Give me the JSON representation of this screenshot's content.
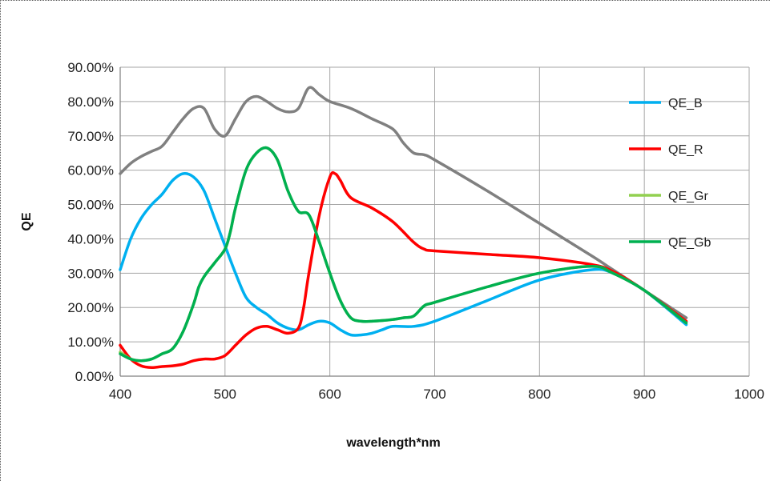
{
  "chart_data": {
    "type": "line",
    "xlabel": "wavelength*nm",
    "ylabel": "QE",
    "xlim": [
      400,
      1000
    ],
    "ylim": [
      0,
      0.9
    ],
    "x_ticks": [
      "400",
      "500",
      "600",
      "700",
      "800",
      "900",
      "1000"
    ],
    "y_ticks": [
      "0.00%",
      "10.00%",
      "20.00%",
      "30.00%",
      "40.00%",
      "50.00%",
      "60.00%",
      "70.00%",
      "80.00%",
      "90.00%"
    ],
    "grid": true,
    "legend_position": "top-right",
    "series": [
      {
        "name": "QE_B",
        "color": "#00b0f0",
        "x": [
          400,
          410,
          420,
          430,
          440,
          450,
          460,
          470,
          480,
          490,
          500,
          510,
          520,
          530,
          540,
          550,
          560,
          570,
          580,
          590,
          600,
          610,
          620,
          630,
          640,
          650,
          660,
          680,
          700,
          750,
          800,
          850,
          870,
          900,
          940
        ],
        "y": [
          0.31,
          0.4,
          0.46,
          0.5,
          0.53,
          0.57,
          0.59,
          0.58,
          0.54,
          0.46,
          0.38,
          0.3,
          0.23,
          0.2,
          0.18,
          0.155,
          0.14,
          0.135,
          0.15,
          0.16,
          0.155,
          0.135,
          0.12,
          0.12,
          0.125,
          0.135,
          0.145,
          0.145,
          0.16,
          0.22,
          0.28,
          0.31,
          0.3,
          0.25,
          0.15
        ]
      },
      {
        "name": "QE_R",
        "color": "#ff0000",
        "x": [
          400,
          410,
          420,
          430,
          440,
          450,
          460,
          470,
          480,
          490,
          500,
          510,
          520,
          530,
          540,
          550,
          560,
          570,
          575,
          580,
          590,
          600,
          605,
          610,
          620,
          640,
          660,
          680,
          690,
          700,
          750,
          800,
          850,
          870,
          900,
          940
        ],
        "y": [
          0.09,
          0.05,
          0.03,
          0.025,
          0.028,
          0.03,
          0.035,
          0.045,
          0.05,
          0.05,
          0.06,
          0.09,
          0.12,
          0.14,
          0.145,
          0.135,
          0.125,
          0.14,
          0.2,
          0.3,
          0.47,
          0.58,
          0.59,
          0.57,
          0.52,
          0.49,
          0.45,
          0.39,
          0.37,
          0.365,
          0.355,
          0.345,
          0.325,
          0.305,
          0.25,
          0.16
        ]
      },
      {
        "name": "QE_Gr",
        "color": "#92d050",
        "x": [
          400,
          410,
          420,
          430,
          440,
          450,
          460,
          470,
          475,
          480,
          490,
          500,
          505,
          510,
          520,
          530,
          540,
          550,
          560,
          570,
          580,
          590,
          600,
          610,
          620,
          630,
          640,
          650,
          660,
          670,
          680,
          690,
          700,
          750,
          800,
          850,
          870,
          900,
          940
        ],
        "y": [
          0.07,
          0.05,
          0.045,
          0.05,
          0.065,
          0.08,
          0.13,
          0.21,
          0.26,
          0.29,
          0.33,
          0.37,
          0.42,
          0.49,
          0.6,
          0.65,
          0.665,
          0.63,
          0.54,
          0.48,
          0.47,
          0.39,
          0.3,
          0.22,
          0.17,
          0.16,
          0.16,
          0.162,
          0.165,
          0.17,
          0.175,
          0.205,
          0.215,
          0.26,
          0.3,
          0.32,
          0.3,
          0.25,
          0.155
        ]
      },
      {
        "name": "QE_Gb",
        "color": "#00b050",
        "x": [
          400,
          410,
          420,
          430,
          440,
          450,
          460,
          470,
          475,
          480,
          490,
          500,
          505,
          510,
          520,
          530,
          540,
          550,
          560,
          570,
          580,
          590,
          600,
          610,
          620,
          630,
          640,
          650,
          660,
          670,
          680,
          690,
          700,
          750,
          800,
          850,
          870,
          900,
          940
        ],
        "y": [
          0.065,
          0.05,
          0.045,
          0.05,
          0.065,
          0.08,
          0.13,
          0.21,
          0.26,
          0.29,
          0.33,
          0.37,
          0.42,
          0.49,
          0.6,
          0.65,
          0.665,
          0.63,
          0.54,
          0.48,
          0.47,
          0.39,
          0.3,
          0.22,
          0.17,
          0.16,
          0.16,
          0.162,
          0.165,
          0.17,
          0.175,
          0.205,
          0.215,
          0.26,
          0.3,
          0.32,
          0.3,
          0.25,
          0.155
        ]
      },
      {
        "name": "",
        "color": "#808080",
        "x": [
          400,
          410,
          420,
          430,
          440,
          450,
          460,
          470,
          480,
          490,
          500,
          510,
          520,
          530,
          540,
          550,
          560,
          570,
          580,
          590,
          600,
          620,
          640,
          660,
          670,
          680,
          690,
          700,
          750,
          800,
          850,
          870,
          900,
          940
        ],
        "y": [
          0.59,
          0.62,
          0.64,
          0.655,
          0.67,
          0.71,
          0.75,
          0.78,
          0.78,
          0.72,
          0.7,
          0.75,
          0.8,
          0.815,
          0.8,
          0.78,
          0.77,
          0.78,
          0.84,
          0.82,
          0.8,
          0.78,
          0.75,
          0.72,
          0.68,
          0.65,
          0.645,
          0.63,
          0.54,
          0.445,
          0.35,
          0.31,
          0.25,
          0.17
        ]
      }
    ]
  }
}
